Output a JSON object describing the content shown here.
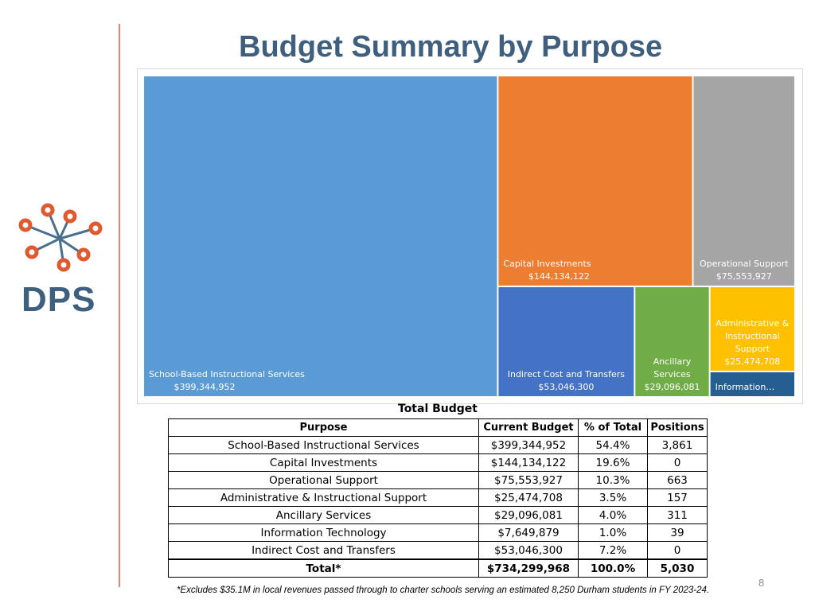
{
  "slide": {
    "title": "Budget Summary by Purpose",
    "logo_text": "DPS",
    "page_number": "8",
    "footnote": "*Excludes $35.1M in local revenues passed through to charter schools serving an estimated 8,250 Durham students in FY 2023-24."
  },
  "chart_data": [
    {
      "type": "treemap",
      "items": [
        {
          "name": "School-Based Instructional Services",
          "label_lines": [
            "School-Based Instructional Services",
            "$399,344,952"
          ],
          "value": 399344952,
          "color": "#5b9bd5"
        },
        {
          "name": "Capital Investments",
          "label_lines": [
            "Capital Investments",
            "$144,134,122"
          ],
          "value": 144134122,
          "color": "#ed7d31"
        },
        {
          "name": "Operational Support",
          "label_lines": [
            "Operational Support",
            "$75,553,927"
          ],
          "value": 75553927,
          "color": "#a5a5a5"
        },
        {
          "name": "Indirect Cost and Transfers",
          "label_lines": [
            "Indirect Cost and Transfers",
            "$53,046,300"
          ],
          "value": 53046300,
          "color": "#4472c4"
        },
        {
          "name": "Ancillary Services",
          "label_lines": [
            "Ancillary",
            "Services",
            "$29,096,081"
          ],
          "value": 29096081,
          "color": "#70ad47"
        },
        {
          "name": "Administrative & Instructional Support",
          "label_lines": [
            "Administrative &",
            "Instructional",
            "Support",
            "$25,474,708"
          ],
          "value": 25474708,
          "color": "#ffc000"
        },
        {
          "name": "Information Technology",
          "label_lines": [
            "Information…"
          ],
          "value": 7649879,
          "color": "#255e91"
        }
      ]
    },
    {
      "type": "table",
      "title": "Total Budget",
      "columns": [
        "Purpose",
        "Current Budget",
        "% of Total",
        "Positions"
      ],
      "rows": [
        [
          "School-Based Instructional Services",
          "$399,344,952",
          "54.4%",
          "3,861"
        ],
        [
          "Capital Investments",
          "$144,134,122",
          "19.6%",
          "0"
        ],
        [
          "Operational Support",
          "$75,553,927",
          "10.3%",
          "663"
        ],
        [
          "Administrative & Instructional Support",
          "$25,474,708",
          "3.5%",
          "157"
        ],
        [
          "Ancillary Services",
          "$29,096,081",
          "4.0%",
          "311"
        ],
        [
          "Information Technology",
          "$7,649,879",
          "1.0%",
          "39"
        ],
        [
          "Indirect Cost and Transfers",
          "$53,046,300",
          "7.2%",
          "0"
        ]
      ],
      "total": [
        "Total*",
        "$734,299,968",
        "100.0%",
        "5,030"
      ]
    }
  ]
}
